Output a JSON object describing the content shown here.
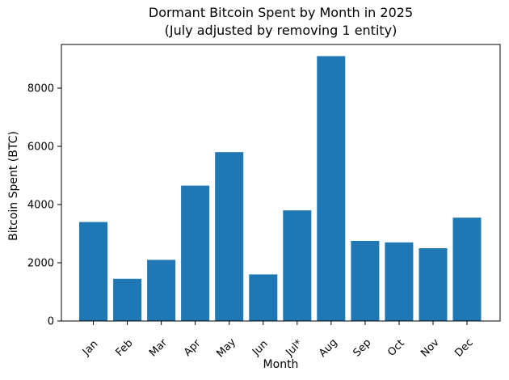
{
  "chart_data": {
    "type": "bar",
    "title": "Dormant Bitcoin Spent by Month in 2025",
    "subtitle": "(July adjusted by removing 1 entity)",
    "xlabel": "Month",
    "ylabel": "Bitcoin Spent (BTC)",
    "categories": [
      "Jan",
      "Feb",
      "Mar",
      "Apr",
      "May",
      "Jun",
      "Jul*",
      "Aug",
      "Sep",
      "Oct",
      "Nov",
      "Dec"
    ],
    "values": [
      3400,
      1450,
      2100,
      4650,
      5800,
      1600,
      3800,
      9100,
      2750,
      2700,
      2500,
      3550
    ],
    "yticks": [
      0,
      2000,
      4000,
      6000,
      8000
    ],
    "ylim": [
      0,
      9500
    ],
    "bar_color": "#1f77b4",
    "axis_color": "#000000",
    "background_color": "#ffffff",
    "grid": false,
    "legend_position": "none"
  }
}
